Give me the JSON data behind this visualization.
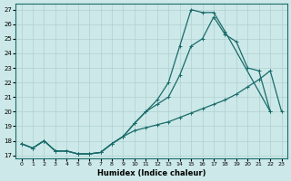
{
  "title": "",
  "xlabel": "Humidex (Indice chaleur)",
  "ylabel": "",
  "bg_color": "#cce8e8",
  "grid_color": "#b0d0d0",
  "line_color": "#1a6b6b",
  "x_ticks": [
    0,
    1,
    2,
    3,
    4,
    5,
    6,
    7,
    8,
    9,
    10,
    11,
    12,
    13,
    14,
    15,
    16,
    17,
    18,
    19,
    20,
    21,
    22,
    23
  ],
  "y_ticks": [
    17,
    18,
    19,
    20,
    21,
    22,
    23,
    24,
    25,
    26,
    27
  ],
  "ylim": [
    16.8,
    27.4
  ],
  "xlim": [
    -0.5,
    23.5
  ],
  "line_top": {
    "x": [
      0,
      1,
      2,
      3,
      4,
      5,
      6,
      7,
      8,
      9,
      10,
      11,
      12,
      13,
      14,
      15,
      16,
      17,
      18,
      22
    ],
    "y": [
      17.8,
      17.5,
      18.0,
      17.3,
      17.3,
      17.1,
      17.1,
      17.2,
      17.8,
      18.3,
      19.2,
      20.0,
      20.8,
      22.0,
      24.5,
      27.0,
      26.8,
      26.8,
      25.5,
      20.0
    ]
  },
  "line_mid": {
    "x": [
      0,
      1,
      2,
      3,
      4,
      5,
      6,
      7,
      8,
      9,
      10,
      11,
      12,
      13,
      14,
      15,
      16,
      17,
      18,
      19,
      20,
      21,
      22
    ],
    "y": [
      17.8,
      17.5,
      18.0,
      17.3,
      17.3,
      17.1,
      17.1,
      17.2,
      17.8,
      18.3,
      19.2,
      20.0,
      20.5,
      21.0,
      22.5,
      24.5,
      25.0,
      26.5,
      25.3,
      24.8,
      23.0,
      22.8,
      20.0
    ]
  },
  "line_bot": {
    "x": [
      0,
      1,
      2,
      3,
      4,
      5,
      6,
      7,
      8,
      9,
      10,
      11,
      12,
      13,
      14,
      15,
      16,
      17,
      18,
      19,
      20,
      21,
      22,
      23
    ],
    "y": [
      17.8,
      17.5,
      18.0,
      17.3,
      17.3,
      17.1,
      17.1,
      17.2,
      17.8,
      18.3,
      18.7,
      18.9,
      19.1,
      19.3,
      19.6,
      19.9,
      20.2,
      20.5,
      20.8,
      21.2,
      21.7,
      22.2,
      22.8,
      20.0
    ]
  }
}
